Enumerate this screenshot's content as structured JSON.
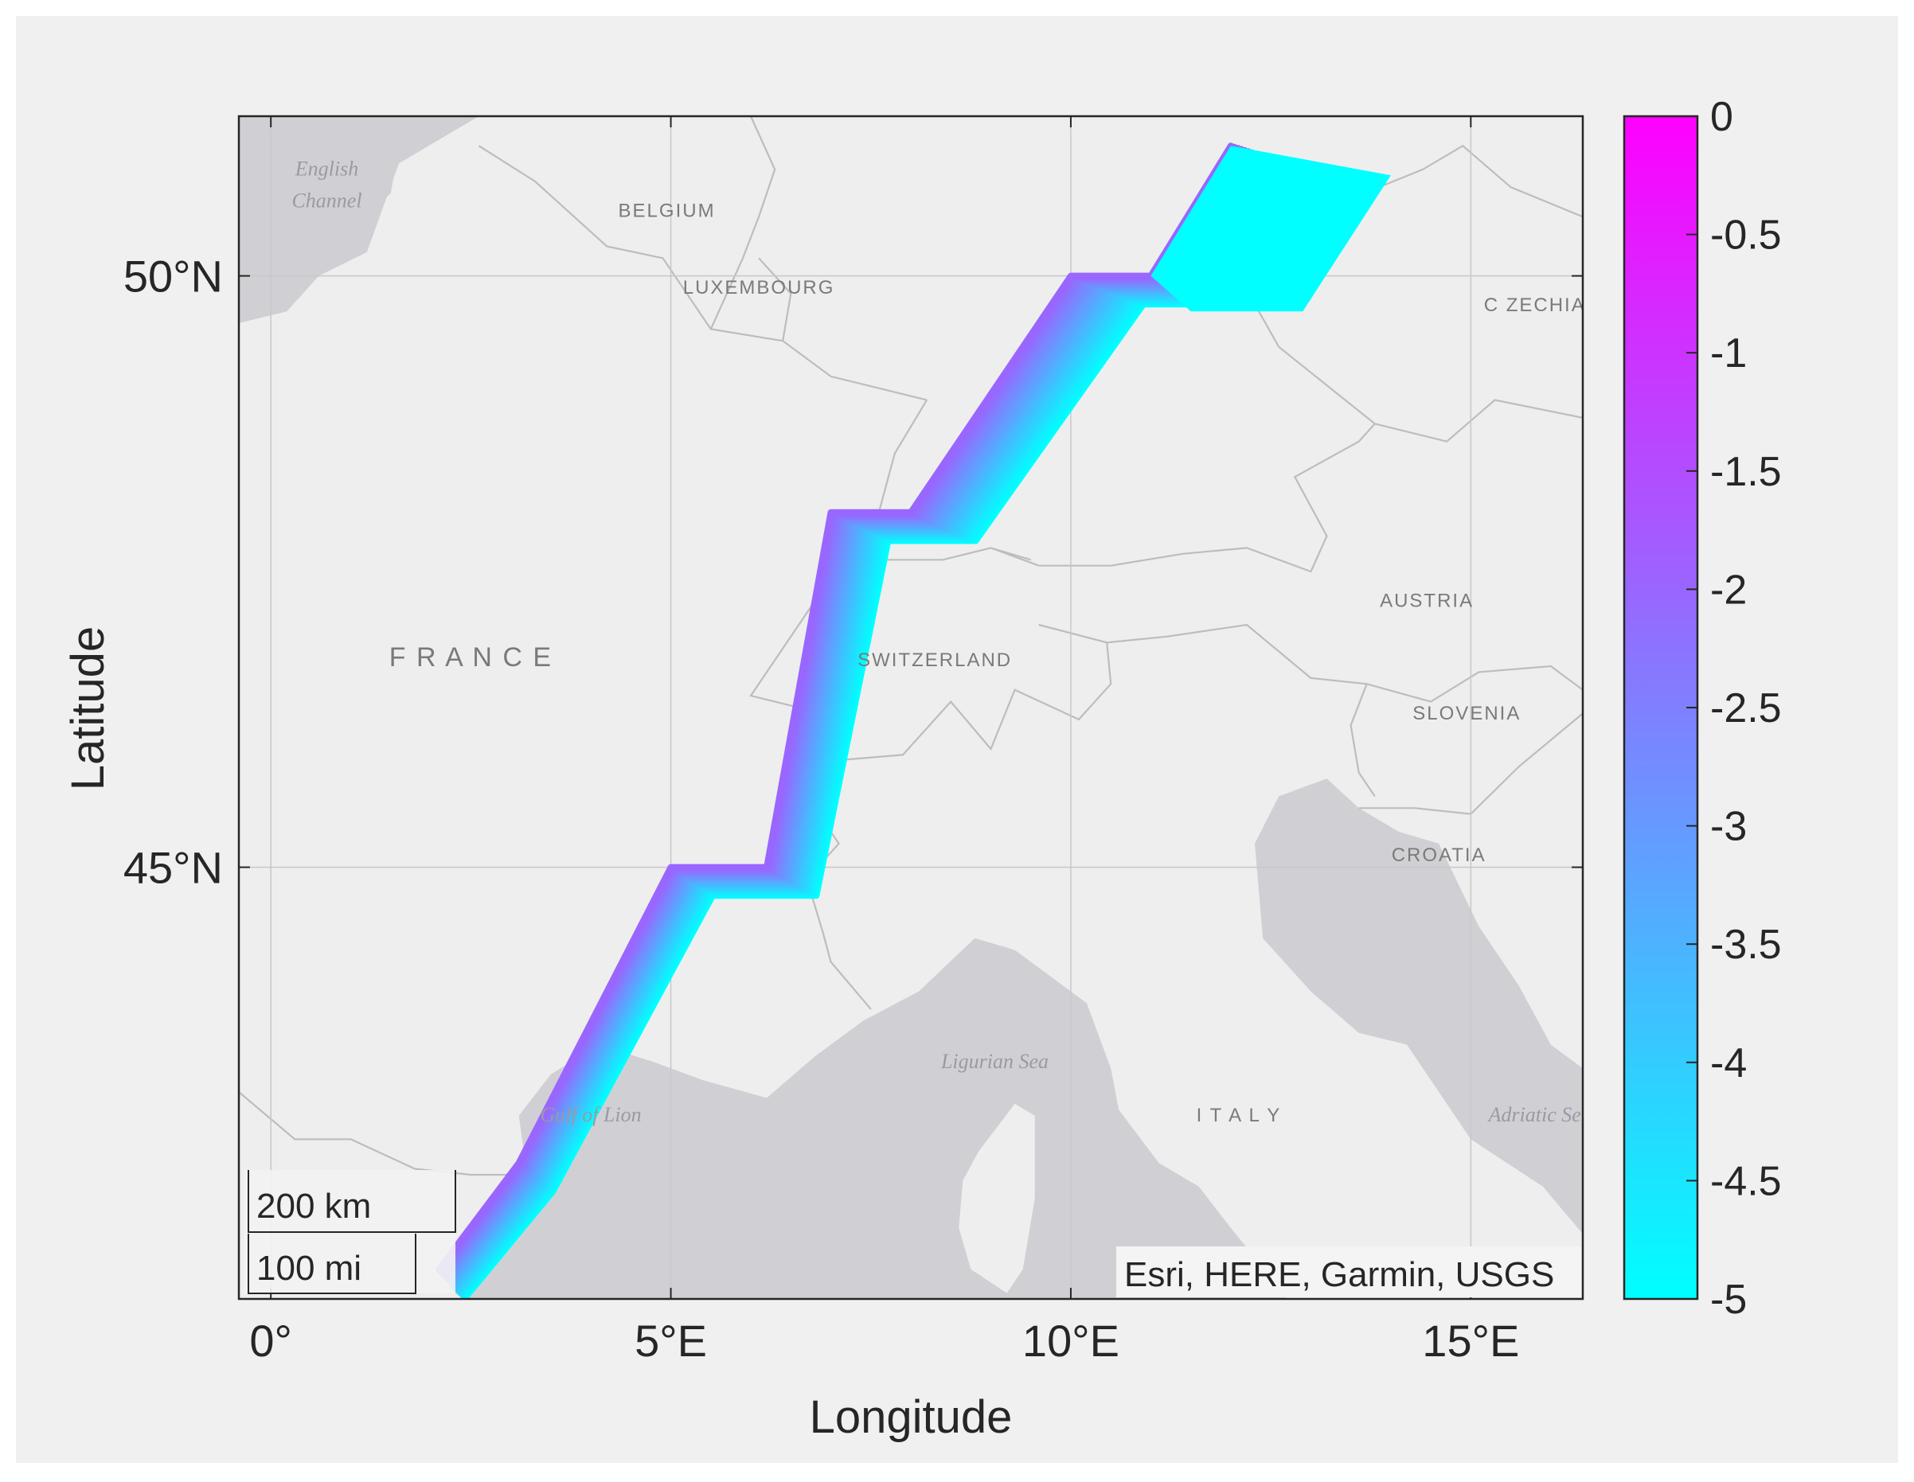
{
  "colors": {
    "background": "#f0f0f0",
    "land": "#eeeeee",
    "water": "#d0d0d4",
    "border": "#bdbdbd",
    "grid": "#c8c8c8",
    "axis": "#262626",
    "colormap_low": "#00ffff",
    "colormap_high": "#ff00ff"
  },
  "chart_data": {
    "type": "scatter",
    "xlabel": "Longitude",
    "ylabel": "Latitude",
    "xlim": [
      -0.4,
      16.4
    ],
    "ylim": [
      41.35,
      51.35
    ],
    "x_ticks": [
      0,
      5,
      10,
      15
    ],
    "x_tick_labels": [
      "0°",
      "5°E",
      "10°E",
      "15°E"
    ],
    "y_ticks": [
      45,
      50
    ],
    "y_tick_labels": [
      "45°N",
      "50°N"
    ],
    "grid": true,
    "colorbar": {
      "range": [
        -5,
        0
      ],
      "ticks": [
        0,
        -0.5,
        -1,
        -1.5,
        -2,
        -2.5,
        -3,
        -3.5,
        -4,
        -4.5,
        -5
      ],
      "tick_labels": [
        "0",
        "-0.5",
        "-1",
        "-1.5",
        "-2",
        "-2.5",
        "-3",
        "-3.5",
        "-4",
        "-4.5",
        "-5"
      ],
      "colormap": "cool"
    },
    "scalebar": {
      "km_label": "200 km",
      "mi_label": "100 mi"
    },
    "attribution": "Esri, HERE, Garmin, USGS",
    "route": [
      [
        2.1,
        41.6
      ],
      [
        3.1,
        42.5
      ],
      [
        5.0,
        45.0
      ],
      [
        6.2,
        45.0
      ],
      [
        7.0,
        48.0
      ],
      [
        8.0,
        48.0
      ],
      [
        10.0,
        50.0
      ],
      [
        11.0,
        50.0
      ],
      [
        12.0,
        51.1
      ]
    ],
    "route_end": [
      14.0,
      50.85
    ],
    "swath_lateral_shift": 2.0,
    "swath_steps": 26,
    "swath_value_range": [
      -5,
      -2
    ]
  },
  "map_labels": {
    "countries": [
      {
        "name": "BELGIUM",
        "lon": 4.95,
        "lat": 50.5
      },
      {
        "name": "LUXEMBOURG",
        "lon": 6.1,
        "lat": 49.85
      },
      {
        "name": "F R A N C E",
        "lon": 2.5,
        "lat": 46.7
      },
      {
        "name": "SWITZERLAND",
        "lon": 8.3,
        "lat": 46.7
      },
      {
        "name": "C ZECHIA",
        "lon": 15.8,
        "lat": 49.7
      },
      {
        "name": "AUSTRIA",
        "lon": 14.45,
        "lat": 47.2
      },
      {
        "name": "SLOVENIA",
        "lon": 14.95,
        "lat": 46.25
      },
      {
        "name": "CROATIA",
        "lon": 14.6,
        "lat": 45.05
      },
      {
        "name": "I T A L Y",
        "lon": 12.1,
        "lat": 42.85
      }
    ],
    "water": [
      {
        "name": "English",
        "lon": 0.7,
        "lat": 50.85
      },
      {
        "name": "Channel",
        "lon": 0.7,
        "lat": 50.58
      },
      {
        "name": "Ligurian Sea",
        "lon": 9.05,
        "lat": 43.3
      },
      {
        "name": "Gulf of Lion",
        "lon": 4.0,
        "lat": 42.85
      },
      {
        "name": "Adriatic Se",
        "lon": 15.8,
        "lat": 42.85
      }
    ]
  }
}
